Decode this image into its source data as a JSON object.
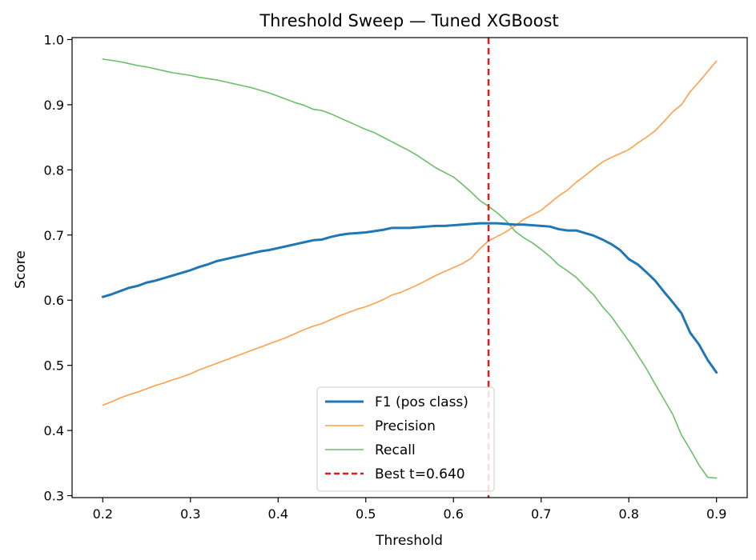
{
  "chart_data": {
    "type": "line",
    "title": "Threshold Sweep — Tuned XGBoost",
    "xlabel": "Threshold",
    "ylabel": "Score",
    "xlim": [
      0.165,
      0.935
    ],
    "ylim": [
      0.297,
      1.003
    ],
    "xticks": [
      "0.2",
      "0.3",
      "0.4",
      "0.5",
      "0.6",
      "0.7",
      "0.8",
      "0.9"
    ],
    "yticks": [
      "0.3",
      "0.4",
      "0.5",
      "0.6",
      "0.7",
      "0.8",
      "0.9",
      "1.0"
    ],
    "grid": false,
    "legend_position": "lower center",
    "x": [
      0.2,
      0.21,
      0.22,
      0.23,
      0.24,
      0.25,
      0.26,
      0.27,
      0.28,
      0.29,
      0.3,
      0.31,
      0.32,
      0.33,
      0.34,
      0.35,
      0.36,
      0.37,
      0.38,
      0.39,
      0.4,
      0.41,
      0.42,
      0.43,
      0.44,
      0.45,
      0.46,
      0.47,
      0.48,
      0.49,
      0.5,
      0.51,
      0.52,
      0.53,
      0.54,
      0.55,
      0.56,
      0.57,
      0.58,
      0.59,
      0.6,
      0.61,
      0.62,
      0.63,
      0.64,
      0.65,
      0.66,
      0.67,
      0.68,
      0.69,
      0.7,
      0.71,
      0.72,
      0.73,
      0.74,
      0.75,
      0.76,
      0.77,
      0.78,
      0.79,
      0.8,
      0.81,
      0.82,
      0.83,
      0.84,
      0.85,
      0.86,
      0.87,
      0.88,
      0.89,
      0.9
    ],
    "series": [
      {
        "name": "F1 (pos class)",
        "color": "#1f77b4",
        "width": 3,
        "dash": "",
        "values": [
          0.605,
          0.609,
          0.614,
          0.619,
          0.622,
          0.627,
          0.63,
          0.634,
          0.638,
          0.642,
          0.646,
          0.651,
          0.655,
          0.66,
          0.663,
          0.666,
          0.669,
          0.672,
          0.675,
          0.677,
          0.68,
          0.683,
          0.686,
          0.689,
          0.692,
          0.693,
          0.697,
          0.7,
          0.702,
          0.703,
          0.704,
          0.706,
          0.708,
          0.711,
          0.711,
          0.711,
          0.712,
          0.713,
          0.714,
          0.714,
          0.715,
          0.716,
          0.717,
          0.718,
          0.718,
          0.718,
          0.717,
          0.716,
          0.716,
          0.715,
          0.714,
          0.713,
          0.709,
          0.707,
          0.707,
          0.703,
          0.699,
          0.693,
          0.686,
          0.677,
          0.663,
          0.655,
          0.643,
          0.63,
          0.613,
          0.597,
          0.58,
          0.55,
          0.532,
          0.508,
          0.489
        ]
      },
      {
        "name": "Precision",
        "color": "#ff9f4a",
        "width": 1.6,
        "dash": "",
        "values": [
          0.439,
          0.444,
          0.45,
          0.455,
          0.459,
          0.464,
          0.469,
          0.473,
          0.478,
          0.482,
          0.487,
          0.493,
          0.498,
          0.503,
          0.508,
          0.513,
          0.518,
          0.523,
          0.528,
          0.533,
          0.538,
          0.543,
          0.549,
          0.555,
          0.56,
          0.564,
          0.57,
          0.576,
          0.581,
          0.586,
          0.59,
          0.595,
          0.601,
          0.608,
          0.612,
          0.618,
          0.624,
          0.631,
          0.638,
          0.644,
          0.65,
          0.656,
          0.664,
          0.679,
          0.691,
          0.698,
          0.705,
          0.714,
          0.724,
          0.731,
          0.738,
          0.749,
          0.76,
          0.769,
          0.781,
          0.791,
          0.802,
          0.812,
          0.819,
          0.825,
          0.831,
          0.841,
          0.85,
          0.86,
          0.874,
          0.889,
          0.9,
          0.92,
          0.935,
          0.951,
          0.967
        ]
      },
      {
        "name": "Recall",
        "color": "#6abf69",
        "width": 1.6,
        "dash": "",
        "values": [
          0.97,
          0.968,
          0.966,
          0.963,
          0.96,
          0.958,
          0.955,
          0.952,
          0.949,
          0.947,
          0.945,
          0.942,
          0.94,
          0.938,
          0.935,
          0.932,
          0.929,
          0.926,
          0.922,
          0.918,
          0.913,
          0.908,
          0.903,
          0.899,
          0.893,
          0.891,
          0.886,
          0.88,
          0.874,
          0.868,
          0.862,
          0.857,
          0.85,
          0.843,
          0.836,
          0.829,
          0.821,
          0.812,
          0.803,
          0.796,
          0.789,
          0.778,
          0.766,
          0.753,
          0.744,
          0.734,
          0.722,
          0.706,
          0.696,
          0.688,
          0.678,
          0.667,
          0.654,
          0.645,
          0.635,
          0.621,
          0.608,
          0.59,
          0.575,
          0.556,
          0.537,
          0.516,
          0.495,
          0.471,
          0.448,
          0.425,
          0.393,
          0.371,
          0.347,
          0.328,
          0.327
        ]
      }
    ],
    "vline": {
      "name": "Best t=0.640",
      "x": 0.64,
      "color": "#e41a1c",
      "dash": "8 5"
    }
  }
}
